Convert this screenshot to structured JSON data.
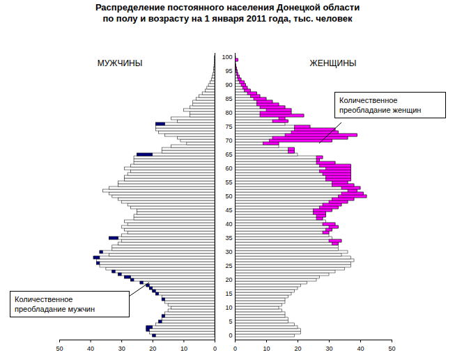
{
  "chart_data": {
    "type": "pyramid",
    "title": "Распределение  постоянного населения Донецкой области",
    "subtitle": "по полу и возрасту на 1 января 2011 года, тыс. человек",
    "annotations": [
      "Количественное преобладание женщин",
      "Количественное преобладание мужчин"
    ],
    "categories": [
      0,
      1,
      2,
      3,
      4,
      5,
      6,
      7,
      8,
      9,
      10,
      11,
      12,
      13,
      14,
      15,
      16,
      17,
      18,
      19,
      20,
      21,
      22,
      23,
      24,
      25,
      26,
      27,
      28,
      29,
      30,
      31,
      32,
      33,
      34,
      35,
      36,
      37,
      38,
      39,
      40,
      41,
      42,
      43,
      44,
      45,
      46,
      47,
      48,
      49,
      50,
      51,
      52,
      53,
      54,
      55,
      56,
      57,
      58,
      59,
      60,
      61,
      62,
      63,
      64,
      65,
      66,
      67,
      68,
      69,
      70,
      71,
      72,
      73,
      74,
      75,
      76,
      77,
      78,
      79,
      80,
      81,
      82,
      83,
      84,
      85,
      86,
      87,
      88,
      89,
      90,
      91,
      92,
      93,
      94,
      95,
      96,
      97,
      98,
      99,
      100
    ],
    "series": [
      {
        "name": "МУЖЧИНЫ",
        "color": "#000080",
        "values": [
          20,
          21,
          22,
          22,
          19,
          18,
          17,
          17,
          16,
          15,
          14,
          15,
          16,
          17,
          17,
          19,
          20,
          21,
          22,
          24,
          27,
          29,
          31,
          33,
          35,
          37,
          38,
          38,
          39,
          34,
          37,
          33,
          33,
          31,
          30,
          34,
          30,
          28,
          29,
          30,
          28,
          29,
          26,
          26,
          25,
          25,
          27,
          28,
          30,
          31,
          33,
          34,
          36,
          34,
          31,
          31,
          29,
          29,
          28,
          27,
          29,
          27,
          26,
          26,
          26,
          25,
          17,
          17,
          14,
          9,
          11,
          12,
          16,
          18,
          19,
          19,
          19,
          12,
          14,
          8,
          8,
          10,
          8,
          7,
          7,
          6,
          5,
          4,
          3,
          2.5,
          2,
          1.5,
          1,
          0.8,
          0.5,
          0.4,
          0.3,
          0.2,
          0.1,
          0.1,
          0.1
        ]
      },
      {
        "name": "ЖЕНЩИНЫ",
        "color": "#ff00ff",
        "values": [
          19,
          21,
          21,
          20,
          19,
          17,
          17,
          16,
          16,
          15,
          14,
          15,
          16,
          16,
          17,
          18,
          19,
          20,
          21,
          23,
          26,
          27,
          30,
          32,
          35,
          37,
          37,
          38,
          37,
          34,
          36,
          33,
          33,
          33,
          34,
          31,
          30,
          30,
          31,
          33,
          32,
          29,
          28,
          29,
          29,
          31,
          33,
          34,
          36,
          38,
          42,
          41,
          39,
          40,
          38,
          36,
          37,
          37,
          37,
          37,
          37,
          37,
          32,
          27,
          28,
          20,
          19,
          19,
          14,
          14,
          31,
          36,
          39,
          33,
          32,
          24,
          16,
          17,
          16,
          22,
          18,
          18,
          16,
          14,
          12,
          10,
          8,
          7,
          5,
          4,
          3.5,
          3,
          2,
          1.5,
          1,
          0.8,
          0.5,
          0.3,
          0.2,
          1,
          0.2
        ]
      }
    ],
    "xlim": [
      0,
      50
    ],
    "xticks": [
      0,
      10,
      20,
      30,
      40,
      50
    ],
    "yticks": [
      0,
      5,
      10,
      15,
      20,
      25,
      30,
      35,
      40,
      45,
      50,
      55,
      60,
      65,
      70,
      75,
      80,
      85,
      90,
      95,
      100
    ]
  }
}
